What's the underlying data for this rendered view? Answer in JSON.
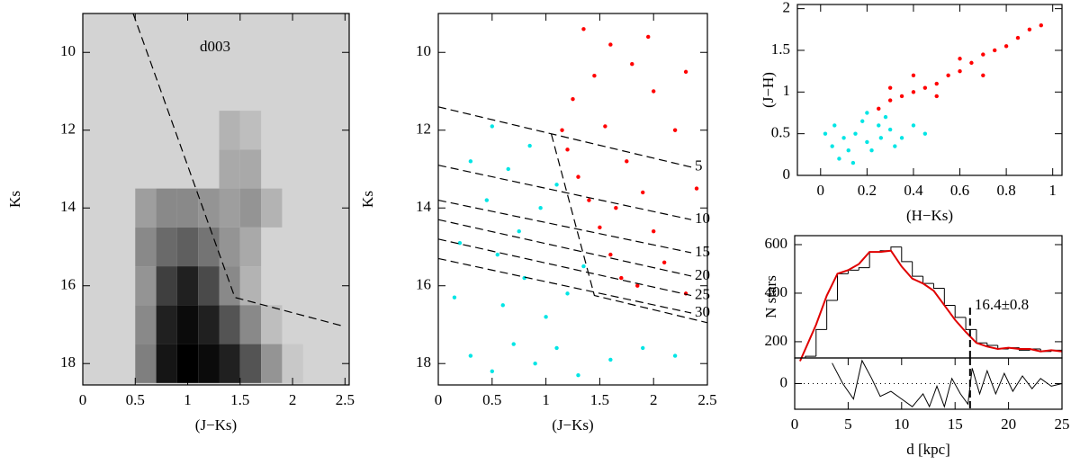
{
  "chart_data": [
    {
      "type": "heatmap",
      "label": "d003",
      "xlabel": "(J−Ks)",
      "ylabel": "Ks",
      "xlim": [
        0,
        2.54
      ],
      "ylim": [
        18.55,
        9
      ],
      "xticks": [
        0,
        0.5,
        1,
        1.5,
        2,
        2.5
      ],
      "yticks": [
        10,
        12,
        14,
        16,
        18
      ],
      "x_edges": [
        0.3,
        0.5,
        0.7,
        0.9,
        1.1,
        1.3,
        1.5,
        1.7,
        1.9,
        2.1
      ],
      "y_edges": [
        11.5,
        12.5,
        13.5,
        14.5,
        15.5,
        16.5,
        17.5,
        18.5
      ],
      "values": [
        [
          0,
          0,
          0,
          0,
          0,
          0.15,
          0.1,
          0,
          0
        ],
        [
          0,
          0,
          0,
          0,
          0,
          0.2,
          0.2,
          0,
          0
        ],
        [
          0,
          0.25,
          0.35,
          0.35,
          0.3,
          0.25,
          0.3,
          0.15,
          0
        ],
        [
          0,
          0.35,
          0.5,
          0.55,
          0.45,
          0.3,
          0.2,
          0,
          0
        ],
        [
          0,
          0.3,
          0.7,
          0.85,
          0.65,
          0.35,
          0.15,
          0,
          0
        ],
        [
          0,
          0.35,
          0.85,
          0.95,
          0.85,
          0.6,
          0.35,
          0.1,
          0
        ],
        [
          0,
          0.4,
          0.9,
          1,
          0.95,
          0.85,
          0.6,
          0.3,
          0.05
        ]
      ],
      "lines": [
        {
          "x": [
            0.48,
            1.45,
            2.5
          ],
          "y": [
            9,
            16.3,
            17.05
          ]
        }
      ]
    },
    {
      "type": "scatter",
      "xlabel": "(J−Ks)",
      "ylabel": "Ks",
      "xlim": [
        0,
        2.5
      ],
      "ylim": [
        18.55,
        9
      ],
      "xticks": [
        0,
        0.5,
        1,
        1.5,
        2,
        2.5
      ],
      "yticks": [
        10,
        12,
        14,
        16,
        18
      ],
      "series": [
        {
          "color": "#00e5e5",
          "x": [
            0.3,
            0.5,
            0.7,
            0.9,
            1.1,
            1.3,
            1.6,
            1.9,
            2.2,
            0.6,
            0.8,
            1.0,
            1.2,
            0.55,
            0.75,
            0.95,
            1.1,
            0.45,
            0.65,
            0.85,
            0.3,
            0.5,
            0.2,
            0.15,
            1.35
          ],
          "y": [
            17.8,
            18.2,
            17.5,
            18.0,
            17.6,
            18.3,
            17.9,
            17.6,
            17.8,
            16.5,
            15.8,
            16.8,
            16.2,
            15.2,
            14.6,
            14.0,
            13.4,
            13.8,
            13.0,
            12.4,
            12.8,
            11.9,
            14.9,
            16.3,
            15.5
          ]
        },
        {
          "color": "#ff0000",
          "x": [
            1.2,
            1.3,
            1.4,
            1.5,
            1.6,
            1.7,
            1.55,
            1.75,
            1.9,
            2.0,
            2.1,
            2.3,
            1.25,
            1.45,
            1.6,
            1.8,
            2.0,
            2.2,
            2.4,
            1.35,
            1.95,
            2.3,
            1.15,
            1.65,
            1.85
          ],
          "y": [
            12.5,
            13.2,
            13.8,
            14.5,
            15.2,
            15.8,
            11.9,
            12.8,
            13.6,
            14.6,
            15.4,
            16.2,
            11.2,
            10.6,
            9.8,
            10.3,
            11.0,
            12.0,
            13.5,
            9.4,
            9.6,
            10.5,
            12.0,
            14.0,
            16.0
          ]
        }
      ],
      "lines": [
        {
          "x": [
            1.05,
            1.45,
            2.5
          ],
          "y": [
            12.1,
            16.25,
            16.95
          ]
        },
        {
          "x": [
            0,
            2.35
          ],
          "y": [
            11.4,
            12.95
          ],
          "label": 5
        },
        {
          "x": [
            0,
            2.35
          ],
          "y": [
            12.9,
            14.3
          ],
          "label": 10
        },
        {
          "x": [
            0,
            2.35
          ],
          "y": [
            13.8,
            15.15
          ],
          "label": 15
        },
        {
          "x": [
            0,
            2.35
          ],
          "y": [
            14.3,
            15.75
          ],
          "label": 20
        },
        {
          "x": [
            0,
            2.35
          ],
          "y": [
            14.8,
            16.25
          ],
          "label": 25
        },
        {
          "x": [
            0,
            2.35
          ],
          "y": [
            15.3,
            16.7
          ],
          "label": 30
        }
      ]
    },
    {
      "type": "scatter",
      "xlabel": "(H−Ks)",
      "ylabel": "(J−H)",
      "xlim": [
        -0.1,
        1.04
      ],
      "ylim": [
        0,
        2.05
      ],
      "xticks": [
        0,
        0.2,
        0.4,
        0.6,
        0.8,
        1
      ],
      "yticks": [
        0,
        0.5,
        1,
        1.5,
        2
      ],
      "series": [
        {
          "color": "#00e5e5",
          "x": [
            0.05,
            0.1,
            0.15,
            0.2,
            0.25,
            0.3,
            0.08,
            0.12,
            0.18,
            0.22,
            0.02,
            0.28,
            0.35,
            0.4,
            0.14,
            0.2,
            0.32,
            0.06,
            0.45,
            0.26
          ],
          "y": [
            0.35,
            0.45,
            0.5,
            0.4,
            0.6,
            0.55,
            0.2,
            0.3,
            0.65,
            0.3,
            0.5,
            0.7,
            0.45,
            0.6,
            0.15,
            0.75,
            0.35,
            0.6,
            0.5,
            0.45
          ]
        },
        {
          "color": "#ff0000",
          "x": [
            0.25,
            0.3,
            0.35,
            0.4,
            0.45,
            0.5,
            0.55,
            0.6,
            0.65,
            0.7,
            0.75,
            0.8,
            0.85,
            0.9,
            0.95,
            0.4,
            0.5,
            0.6,
            0.7,
            0.3
          ],
          "y": [
            0.8,
            0.9,
            0.95,
            1.0,
            1.05,
            1.1,
            1.2,
            1.25,
            1.35,
            1.45,
            1.5,
            1.55,
            1.65,
            1.75,
            1.8,
            1.2,
            0.95,
            1.4,
            1.2,
            1.05
          ]
        }
      ]
    },
    {
      "type": "histogram",
      "ylabel": "N stars",
      "annotation": "16.4±0.8",
      "vline_x": 16.4,
      "xlim": [
        0,
        25
      ],
      "ylim": [
        133,
        637
      ],
      "yticks": [
        200,
        400,
        600
      ],
      "bins": [
        1,
        2,
        3,
        4,
        5,
        6,
        7,
        8,
        9,
        10,
        11,
        12,
        13,
        14,
        15,
        16,
        17,
        18,
        19,
        20,
        21,
        22,
        23,
        24,
        25
      ],
      "counts": [
        140,
        250,
        370,
        480,
        495,
        505,
        570,
        575,
        590,
        530,
        470,
        440,
        420,
        350,
        300,
        250,
        195,
        185,
        170,
        175,
        165,
        170,
        160,
        165
      ],
      "fit": {
        "color": "#e00000",
        "x": [
          0.5,
          2,
          3,
          4,
          5,
          6,
          7,
          8,
          9,
          10,
          11,
          12,
          13,
          14,
          15,
          16,
          17,
          18,
          19,
          20,
          21,
          22,
          23,
          24,
          25
        ],
        "y": [
          120,
          270,
          390,
          480,
          495,
          520,
          570,
          570,
          575,
          510,
          460,
          440,
          410,
          350,
          290,
          240,
          195,
          180,
          170,
          175,
          170,
          170,
          160,
          165,
          160
        ]
      }
    },
    {
      "type": "line",
      "xlabel": "d [kpc]",
      "vline_x": 16.4,
      "xlim": [
        0,
        25
      ],
      "ylim": [
        -50,
        50
      ],
      "xticks": [
        0,
        5,
        10,
        15,
        20,
        25
      ],
      "yticks": [
        0
      ],
      "x": [
        3.5,
        4.5,
        5.5,
        6.3,
        7.2,
        8,
        9,
        10,
        11,
        12,
        12.6,
        13.3,
        14,
        14.7,
        15.5,
        16.2,
        16.6,
        17.3,
        18,
        18.8,
        19.6,
        20.4,
        21.3,
        22.2,
        23,
        24,
        25
      ],
      "y": [
        40,
        0,
        -30,
        45,
        10,
        -25,
        -15,
        -30,
        -45,
        -20,
        -45,
        -5,
        -45,
        10,
        -20,
        -40,
        30,
        -20,
        25,
        -20,
        20,
        -15,
        15,
        -10,
        10,
        -5,
        0
      ]
    }
  ]
}
